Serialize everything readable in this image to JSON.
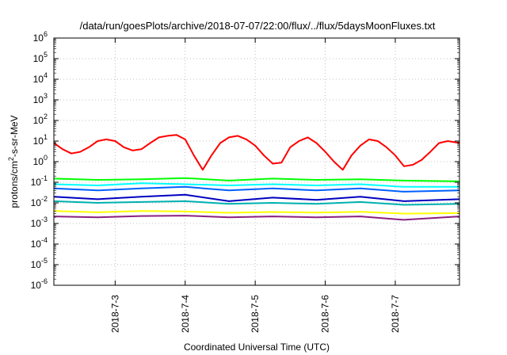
{
  "chart_data": {
    "type": "line",
    "title": "/data/run/goesPlots/archive/2018-07-07/22:00/flux/../flux/5daysMoonFluxes.txt",
    "xlabel": "Coordinated Universal Time (UTC)",
    "ylabel": "protons/cm²-s-sr-MeV",
    "y_scale": "log",
    "ylim": [
      1e-06,
      1000000.0
    ],
    "xlim": [
      "2018-07-02T03:00",
      "2018-07-07T22:00"
    ],
    "x_tick_labels": [
      "2018-7-3",
      "2018-7-4",
      "2018-7-5",
      "2018-7-6",
      "2018-7-7"
    ],
    "x_tick_positions": [
      "2018-07-03",
      "2018-07-04",
      "2018-07-05",
      "2018-07-06",
      "2018-07-07"
    ],
    "y_tick_labels": [
      {
        "base": "10",
        "exp": "-6"
      },
      {
        "base": "10",
        "exp": "-5"
      },
      {
        "base": "10",
        "exp": "-4"
      },
      {
        "base": "10",
        "exp": "-3"
      },
      {
        "base": "10",
        "exp": "-2"
      },
      {
        "base": "10",
        "exp": "-1"
      },
      {
        "base": "10",
        "exp": "0"
      },
      {
        "base": "10",
        "exp": "1"
      },
      {
        "base": "10",
        "exp": "2"
      },
      {
        "base": "10",
        "exp": "3"
      },
      {
        "base": "10",
        "exp": "4"
      },
      {
        "base": "10",
        "exp": "5"
      },
      {
        "base": "10",
        "exp": "6"
      }
    ],
    "grid": true,
    "legend": "none",
    "series": [
      {
        "color": "#ff0000",
        "x": [
          "2018-07-02T03:00",
          "2018-07-02T06:00",
          "2018-07-02T09:00",
          "2018-07-02T12:00",
          "2018-07-02T15:00",
          "2018-07-02T18:00",
          "2018-07-02T21:00",
          "2018-07-03T00:00",
          "2018-07-03T03:00",
          "2018-07-03T06:00",
          "2018-07-03T09:00",
          "2018-07-03T12:00",
          "2018-07-03T15:00",
          "2018-07-03T18:00",
          "2018-07-03T21:00",
          "2018-07-04T00:00",
          "2018-07-04T03:00",
          "2018-07-04T06:00",
          "2018-07-04T09:00",
          "2018-07-04T12:00",
          "2018-07-04T15:00",
          "2018-07-04T18:00",
          "2018-07-04T21:00",
          "2018-07-05T00:00",
          "2018-07-05T03:00",
          "2018-07-05T06:00",
          "2018-07-05T09:00",
          "2018-07-05T12:00",
          "2018-07-05T15:00",
          "2018-07-05T18:00",
          "2018-07-05T21:00",
          "2018-07-06T00:00",
          "2018-07-06T03:00",
          "2018-07-06T06:00",
          "2018-07-06T09:00",
          "2018-07-06T12:00",
          "2018-07-06T15:00",
          "2018-07-06T18:00",
          "2018-07-06T21:00",
          "2018-07-07T00:00",
          "2018-07-07T03:00",
          "2018-07-07T06:00",
          "2018-07-07T09:00",
          "2018-07-07T12:00",
          "2018-07-07T15:00",
          "2018-07-07T18:00",
          "2018-07-07T22:00"
        ],
        "values": [
          8,
          4,
          2.5,
          3,
          5,
          10,
          12,
          10,
          5,
          3.5,
          4,
          8,
          15,
          18,
          20,
          12,
          2,
          0.4,
          2,
          8,
          15,
          18,
          12,
          6,
          2,
          0.8,
          0.9,
          5,
          10,
          15,
          8,
          3,
          1,
          0.4,
          2,
          6,
          12,
          10,
          5,
          2,
          0.6,
          0.7,
          1.2,
          3,
          8,
          10,
          8
        ]
      },
      {
        "color": "#00ff00",
        "x": [
          "2018-07-02T03:00",
          "2018-07-02T18:00",
          "2018-07-03T09:00",
          "2018-07-04T00:00",
          "2018-07-04T15:00",
          "2018-07-05T06:00",
          "2018-07-05T21:00",
          "2018-07-06T12:00",
          "2018-07-07T03:00",
          "2018-07-07T22:00"
        ],
        "values": [
          0.15,
          0.13,
          0.14,
          0.16,
          0.12,
          0.15,
          0.13,
          0.14,
          0.12,
          0.11
        ]
      },
      {
        "color": "#00ffff",
        "x": [
          "2018-07-02T03:00",
          "2018-07-02T18:00",
          "2018-07-03T09:00",
          "2018-07-04T00:00",
          "2018-07-04T15:00",
          "2018-07-05T06:00",
          "2018-07-05T21:00",
          "2018-07-06T12:00",
          "2018-07-07T03:00",
          "2018-07-07T22:00"
        ],
        "values": [
          0.08,
          0.07,
          0.09,
          0.08,
          0.07,
          0.08,
          0.07,
          0.08,
          0.06,
          0.06
        ]
      },
      {
        "color": "#0060ff",
        "x": [
          "2018-07-02T03:00",
          "2018-07-02T18:00",
          "2018-07-03T09:00",
          "2018-07-04T00:00",
          "2018-07-04T15:00",
          "2018-07-05T06:00",
          "2018-07-05T21:00",
          "2018-07-06T12:00",
          "2018-07-07T03:00",
          "2018-07-07T22:00"
        ],
        "values": [
          0.05,
          0.04,
          0.05,
          0.06,
          0.04,
          0.05,
          0.04,
          0.05,
          0.035,
          0.04
        ]
      },
      {
        "color": "#0000c0",
        "x": [
          "2018-07-02T03:00",
          "2018-07-02T18:00",
          "2018-07-03T09:00",
          "2018-07-04T00:00",
          "2018-07-04T15:00",
          "2018-07-05T06:00",
          "2018-07-05T21:00",
          "2018-07-06T12:00",
          "2018-07-07T03:00",
          "2018-07-07T22:00"
        ],
        "values": [
          0.02,
          0.015,
          0.02,
          0.025,
          0.012,
          0.018,
          0.014,
          0.02,
          0.012,
          0.015
        ]
      },
      {
        "color": "#00b0b0",
        "x": [
          "2018-07-02T03:00",
          "2018-07-02T18:00",
          "2018-07-03T09:00",
          "2018-07-04T00:00",
          "2018-07-04T15:00",
          "2018-07-05T06:00",
          "2018-07-05T21:00",
          "2018-07-06T12:00",
          "2018-07-07T03:00",
          "2018-07-07T22:00"
        ],
        "values": [
          0.012,
          0.01,
          0.011,
          0.012,
          0.009,
          0.01,
          0.009,
          0.011,
          0.008,
          0.009
        ]
      },
      {
        "color": "#ffff00",
        "x": [
          "2018-07-02T03:00",
          "2018-07-02T18:00",
          "2018-07-03T09:00",
          "2018-07-04T00:00",
          "2018-07-04T15:00",
          "2018-07-05T06:00",
          "2018-07-05T21:00",
          "2018-07-06T12:00",
          "2018-07-07T03:00",
          "2018-07-07T22:00"
        ],
        "values": [
          0.004,
          0.0035,
          0.004,
          0.0038,
          0.0033,
          0.0036,
          0.0034,
          0.0037,
          0.003,
          0.0032
        ]
      },
      {
        "color": "#8b2080",
        "x": [
          "2018-07-02T03:00",
          "2018-07-02T18:00",
          "2018-07-03T09:00",
          "2018-07-04T00:00",
          "2018-07-04T15:00",
          "2018-07-05T06:00",
          "2018-07-05T21:00",
          "2018-07-06T12:00",
          "2018-07-07T03:00",
          "2018-07-07T22:00"
        ],
        "values": [
          0.0022,
          0.002,
          0.0023,
          0.0024,
          0.002,
          0.0022,
          0.002,
          0.0022,
          0.0015,
          0.0022
        ]
      }
    ]
  }
}
